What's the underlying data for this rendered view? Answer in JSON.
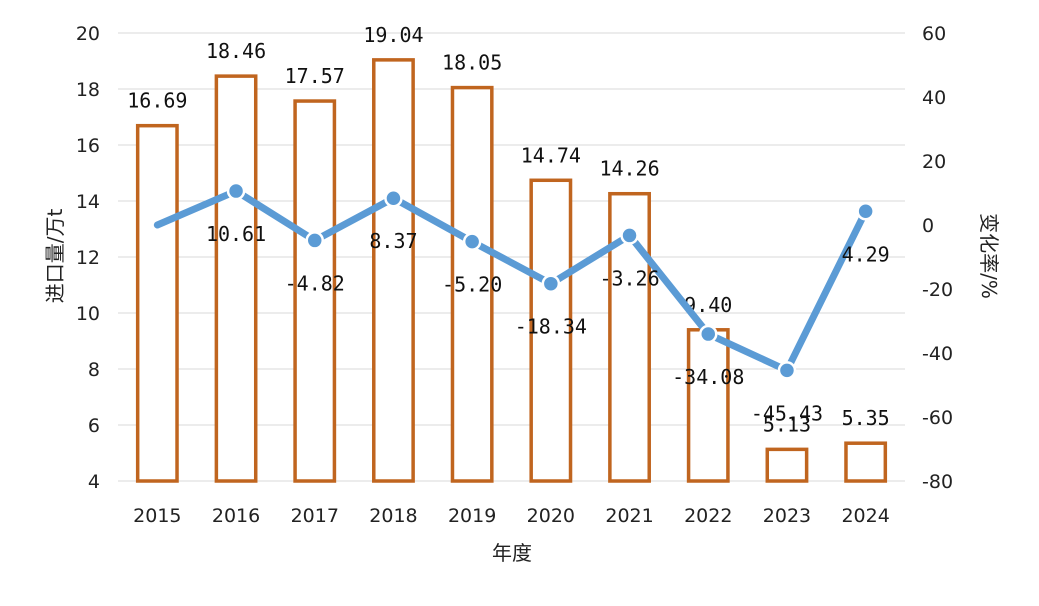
{
  "chart_data": {
    "type": "bar+line",
    "categories": [
      "2015",
      "2016",
      "2017",
      "2018",
      "2019",
      "2020",
      "2021",
      "2022",
      "2023",
      "2024"
    ],
    "series": [
      {
        "type": "bar",
        "axis": "left",
        "values": [
          16.69,
          18.46,
          17.57,
          19.04,
          18.05,
          14.74,
          14.26,
          9.4,
          5.13,
          5.35
        ],
        "labels": [
          "16.69",
          "18.46",
          "17.57",
          "19.04",
          "18.05",
          "14.74",
          "14.26",
          "9.40",
          "5.13",
          "5.35"
        ],
        "color": "#c0651f"
      },
      {
        "type": "line",
        "axis": "right",
        "values": [
          null,
          10.61,
          -4.82,
          8.37,
          -5.2,
          -18.34,
          -3.26,
          -34.08,
          -45.43,
          4.29
        ],
        "labels": [
          "",
          "10.61",
          "-4.82",
          "8.37",
          "-5.20",
          "-18.34",
          "-3.26",
          "-34.08",
          "-45.43",
          "4.29"
        ],
        "line_start_value": 0,
        "color": "#5b9bd5"
      }
    ],
    "xlabel": "年度",
    "ylabel": "进口量/万t",
    "y2label": "变化率/%",
    "ylim": [
      4,
      20
    ],
    "y2lim": [
      -80,
      60
    ],
    "yticks": [
      "4",
      "6",
      "8",
      "10",
      "12",
      "14",
      "16",
      "18",
      "20"
    ],
    "y2ticks": [
      "-80",
      "-60",
      "-40",
      "-20",
      "0",
      "20",
      "40",
      "60"
    ],
    "grid": true,
    "legend": "none"
  }
}
